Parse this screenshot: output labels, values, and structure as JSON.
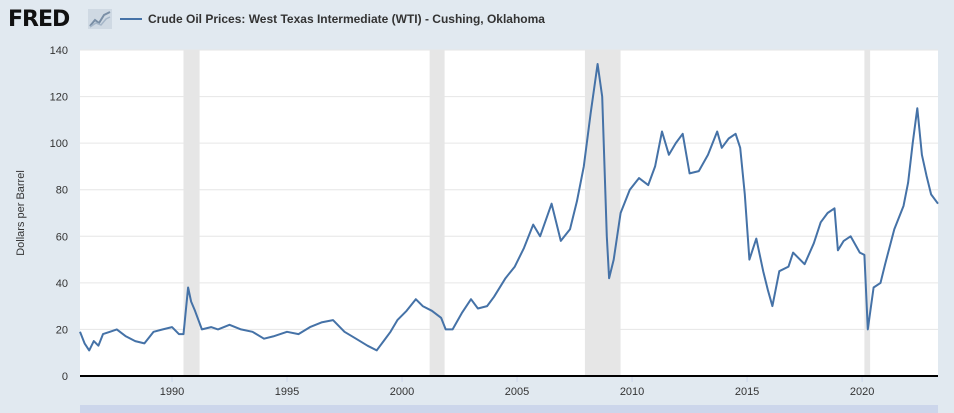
{
  "header": {
    "logo_text": "FRED",
    "logo_icon": "line-chart-icon"
  },
  "chart_data": {
    "type": "line",
    "title": "Crude Oil Prices: West Texas Intermediate (WTI) - Cushing, Oklahoma",
    "ylabel": "Dollars per Barrel",
    "xlabel": "",
    "xlim": [
      1986.0,
      2023.3
    ],
    "ylim": [
      0,
      140
    ],
    "yticks": [
      0,
      20,
      40,
      60,
      80,
      100,
      120,
      140
    ],
    "xticks": [
      1990,
      1995,
      2000,
      2005,
      2010,
      2015,
      2020
    ],
    "grid": true,
    "legend_position": "top",
    "colors": {
      "line": "#4572a7",
      "recession": "#e6e6e6",
      "plot_bg": "#ffffff",
      "page_bg": "#e1e9f0"
    },
    "recessions": [
      [
        1990.5,
        1991.2
      ],
      [
        2001.2,
        2001.85
      ],
      [
        2007.95,
        2009.5
      ],
      [
        2020.1,
        2020.35
      ]
    ],
    "series": [
      {
        "name": "Crude Oil Prices: West Texas Intermediate (WTI) - Cushing, Oklahoma",
        "x": [
          1986.0,
          1986.2,
          1986.4,
          1986.6,
          1986.8,
          1987.0,
          1987.3,
          1987.6,
          1988.0,
          1988.4,
          1988.8,
          1989.2,
          1989.6,
          1990.0,
          1990.3,
          1990.5,
          1990.7,
          1990.83,
          1991.0,
          1991.3,
          1991.7,
          1992.0,
          1992.5,
          1993.0,
          1993.5,
          1994.0,
          1994.4,
          1995.0,
          1995.5,
          1996.0,
          1996.5,
          1997.0,
          1997.5,
          1998.0,
          1998.5,
          1998.9,
          1999.2,
          1999.5,
          1999.8,
          2000.2,
          2000.6,
          2000.9,
          2001.3,
          2001.7,
          2001.9,
          2002.2,
          2002.6,
          2003.0,
          2003.3,
          2003.7,
          2004.0,
          2004.5,
          2004.9,
          2005.3,
          2005.7,
          2006.0,
          2006.5,
          2006.9,
          2007.3,
          2007.6,
          2007.9,
          2008.2,
          2008.5,
          2008.7,
          2008.9,
          2009.0,
          2009.2,
          2009.5,
          2009.9,
          2010.3,
          2010.7,
          2011.0,
          2011.3,
          2011.6,
          2011.9,
          2012.2,
          2012.5,
          2012.9,
          2013.3,
          2013.7,
          2013.9,
          2014.2,
          2014.5,
          2014.7,
          2014.9,
          2015.1,
          2015.4,
          2015.7,
          2015.9,
          2016.1,
          2016.4,
          2016.8,
          2017.0,
          2017.5,
          2017.9,
          2018.2,
          2018.5,
          2018.8,
          2018.95,
          2019.2,
          2019.5,
          2019.9,
          2020.1,
          2020.25,
          2020.5,
          2020.8,
          2021.0,
          2021.4,
          2021.8,
          2022.0,
          2022.2,
          2022.4,
          2022.6,
          2022.8,
          2023.0,
          2023.3
        ],
        "values": [
          19,
          14,
          11,
          15,
          13,
          18,
          19,
          20,
          17,
          15,
          14,
          19,
          20,
          21,
          18,
          18,
          38,
          32,
          28,
          20,
          21,
          20,
          22,
          20,
          19,
          16,
          17,
          19,
          18,
          21,
          23,
          24,
          19,
          16,
          13,
          11,
          15,
          19,
          24,
          28,
          33,
          30,
          28,
          25,
          20,
          20,
          27,
          33,
          29,
          30,
          34,
          42,
          47,
          55,
          65,
          60,
          74,
          58,
          63,
          75,
          90,
          113,
          134,
          120,
          60,
          42,
          50,
          70,
          80,
          85,
          82,
          90,
          105,
          95,
          100,
          104,
          87,
          88,
          95,
          105,
          98,
          102,
          104,
          98,
          78,
          50,
          59,
          45,
          37,
          30,
          45,
          47,
          53,
          48,
          57,
          66,
          70,
          72,
          54,
          58,
          60,
          53,
          52,
          20,
          38,
          40,
          48,
          63,
          73,
          83,
          100,
          115,
          95,
          86,
          78,
          74
        ]
      }
    ]
  }
}
